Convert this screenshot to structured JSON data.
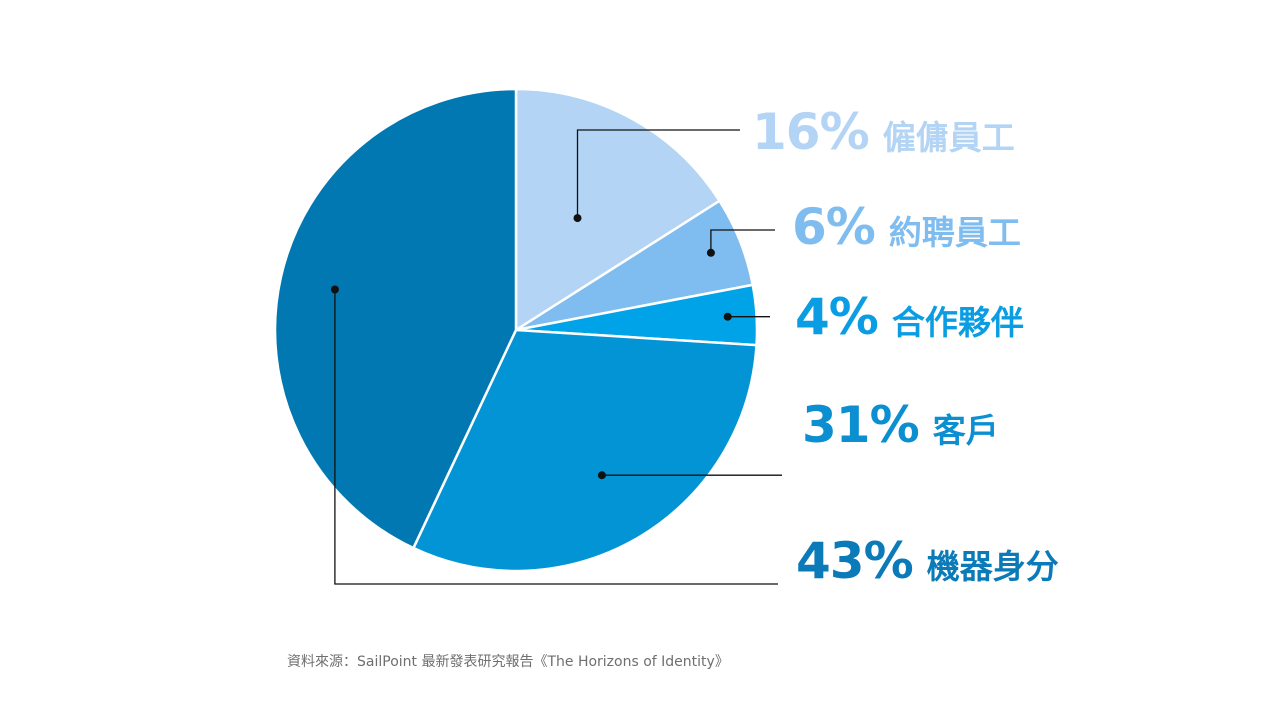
{
  "chart_data": {
    "type": "pie",
    "slices": [
      {
        "label": "僱傭員工",
        "value": 16,
        "value_label": "16%",
        "color": "#b3d4f4"
      },
      {
        "label": "約聘員工",
        "value": 6,
        "value_label": "6%",
        "color": "#7fbcef"
      },
      {
        "label": "合作夥伴",
        "value": 4,
        "value_label": "4%",
        "color": "#00a2e8"
      },
      {
        "label": "客戶",
        "value": 31,
        "value_label": "31%",
        "color": "#0394d5"
      },
      {
        "label": "機器身分",
        "value": 43,
        "value_label": "43%",
        "color": "#0178b1"
      }
    ],
    "label_colors": [
      "#b3d4f4",
      "#7fbcef",
      "#0a9de3",
      "#0b8fd0",
      "#0a7ab8"
    ],
    "legend": "right-side callouts with leader lines"
  },
  "source": "資料來源：SailPoint 最新發表研究報告《The Horizons of Identity》"
}
